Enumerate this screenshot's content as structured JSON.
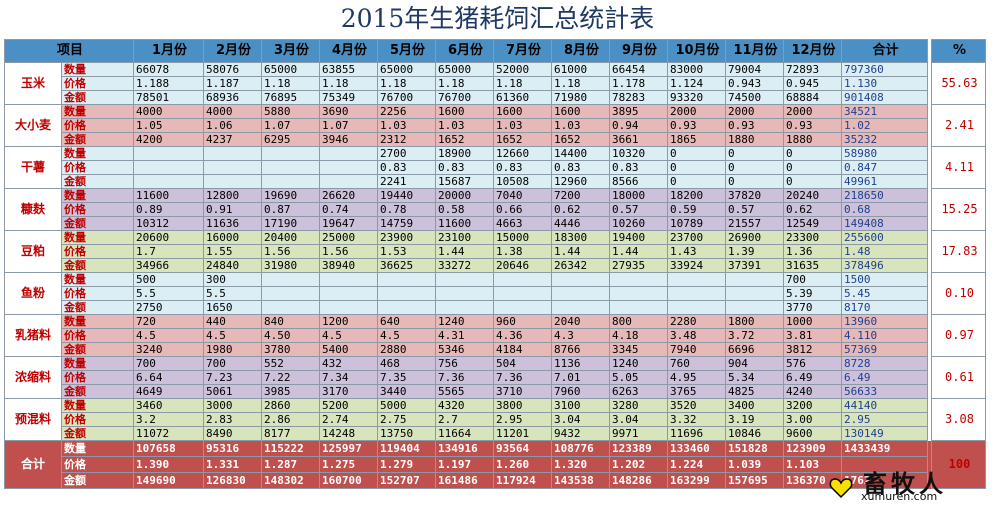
{
  "title": "2015年生猪耗饲汇总统計表",
  "headers": [
    "项目",
    "1月份",
    "2月份",
    "3月份",
    "4月份",
    "5月份",
    "6月份",
    "7月份",
    "8月份",
    "9月份",
    "10月份",
    "11月份",
    "12月份",
    "合计",
    "%"
  ],
  "groups": [
    {
      "name": "玉米",
      "bg": "#dbeef4",
      "pct": "55.63",
      "rows": [
        {
          "label": "数量",
          "values": [
            "66078",
            "58076",
            "65000",
            "63855",
            "65000",
            "65000",
            "52000",
            "61000",
            "66454",
            "83000",
            "79004",
            "72893"
          ],
          "total": "797360"
        },
        {
          "label": "价格",
          "values": [
            "1.188",
            "1.187",
            "1.18",
            "1.18",
            "1.18",
            "1.18",
            "1.18",
            "1.18",
            "1.178",
            "1.124",
            "0.943",
            "0.945"
          ],
          "total": "1.130"
        },
        {
          "label": "金额",
          "values": [
            "78501",
            "68936",
            "76895",
            "75349",
            "76700",
            "76700",
            "61360",
            "71980",
            "78283",
            "93320",
            "74500",
            "68884"
          ],
          "total": "901408"
        }
      ]
    },
    {
      "name": "大小麦",
      "bg": "#e6b8b7",
      "pct": "2.41",
      "rows": [
        {
          "label": "数量",
          "values": [
            "4000",
            "4000",
            "5880",
            "3690",
            "2256",
            "1600",
            "1600",
            "1600",
            "3895",
            "2000",
            "2000",
            "2000"
          ],
          "total": "34521"
        },
        {
          "label": "价格",
          "values": [
            "1.05",
            "1.06",
            "1.07",
            "1.07",
            "1.03",
            "1.03",
            "1.03",
            "1.03",
            "0.94",
            "0.93",
            "0.93",
            "0.93"
          ],
          "total": "1.02"
        },
        {
          "label": "金额",
          "values": [
            "4200",
            "4237",
            "6295",
            "3946",
            "2312",
            "1652",
            "1652",
            "1652",
            "3661",
            "1865",
            "1880",
            "1880"
          ],
          "total": "35232"
        }
      ]
    },
    {
      "name": "干薯",
      "bg": "#dbeef4",
      "pct": "4.11",
      "rows": [
        {
          "label": "数量",
          "values": [
            "",
            "",
            "",
            "",
            "2700",
            "18900",
            "12660",
            "14400",
            "10320",
            "0",
            "0",
            "0"
          ],
          "total": "58980"
        },
        {
          "label": "价格",
          "values": [
            "",
            "",
            "",
            "",
            "0.83",
            "0.83",
            "0.83",
            "0.83",
            "0.83",
            "0",
            "0",
            "0"
          ],
          "total": "0.847"
        },
        {
          "label": "金额",
          "values": [
            "",
            "",
            "",
            "",
            "2241",
            "15687",
            "10508",
            "12960",
            "8566",
            "0",
            "0",
            "0"
          ],
          "total": "49961"
        }
      ]
    },
    {
      "name": "糠麸",
      "bg": "#ccc0da",
      "pct": "15.25",
      "rows": [
        {
          "label": "数量",
          "values": [
            "11600",
            "12800",
            "19690",
            "26620",
            "19440",
            "20000",
            "7040",
            "7200",
            "18000",
            "18200",
            "37820",
            "20240"
          ],
          "total": "218650"
        },
        {
          "label": "价格",
          "values": [
            "0.89",
            "0.91",
            "0.87",
            "0.74",
            "0.78",
            "0.58",
            "0.66",
            "0.62",
            "0.57",
            "0.59",
            "0.57",
            "0.62"
          ],
          "total": "0.68"
        },
        {
          "label": "金额",
          "values": [
            "10312",
            "11636",
            "17190",
            "19647",
            "14759",
            "11600",
            "4663",
            "4446",
            "10260",
            "10789",
            "21557",
            "12549"
          ],
          "total": "149408"
        }
      ]
    },
    {
      "name": "豆粕",
      "bg": "#d8e4bc",
      "pct": "17.83",
      "rows": [
        {
          "label": "数量",
          "values": [
            "20600",
            "16000",
            "20400",
            "25000",
            "23900",
            "23100",
            "15000",
            "18300",
            "19400",
            "23700",
            "26900",
            "23300"
          ],
          "total": "255600"
        },
        {
          "label": "价格",
          "values": [
            "1.7",
            "1.55",
            "1.56",
            "1.56",
            "1.53",
            "1.44",
            "1.38",
            "1.44",
            "1.44",
            "1.43",
            "1.39",
            "1.36"
          ],
          "total": "1.48"
        },
        {
          "label": "金额",
          "values": [
            "34966",
            "24840",
            "31980",
            "38940",
            "36625",
            "33272",
            "20646",
            "26342",
            "27935",
            "33924",
            "37391",
            "31635"
          ],
          "total": "378496"
        }
      ]
    },
    {
      "name": "鱼粉",
      "bg": "#dbeef4",
      "pct": "0.10",
      "rows": [
        {
          "label": "数量",
          "values": [
            "500",
            "300",
            "",
            "",
            "",
            "",
            "",
            "",
            "",
            "",
            "",
            "700"
          ],
          "total": "1500"
        },
        {
          "label": "价格",
          "values": [
            "5.5",
            "5.5",
            "",
            "",
            "",
            "",
            "",
            "",
            "",
            "",
            "",
            "5.39"
          ],
          "total": "5.45"
        },
        {
          "label": "金额",
          "values": [
            "2750",
            "1650",
            "",
            "",
            "",
            "",
            "",
            "",
            "",
            "",
            "",
            "3770"
          ],
          "total": "8170"
        }
      ]
    },
    {
      "name": "乳猪料",
      "bg": "#e6b8b7",
      "pct": "0.97",
      "rows": [
        {
          "label": "数量",
          "values": [
            "720",
            "440",
            "840",
            "1200",
            "640",
            "1240",
            "960",
            "2040",
            "800",
            "2280",
            "1800",
            "1000"
          ],
          "total": "13960"
        },
        {
          "label": "价格",
          "values": [
            "4.5",
            "4.5",
            "4.50",
            "4.5",
            "4.5",
            "4.31",
            "4.36",
            "4.3",
            "4.18",
            "3.48",
            "3.72",
            "3.81"
          ],
          "total": "4.110"
        },
        {
          "label": "金额",
          "values": [
            "3240",
            "1980",
            "3780",
            "5400",
            "2880",
            "5346",
            "4184",
            "8766",
            "3345",
            "7940",
            "6696",
            "3812"
          ],
          "total": "57369"
        }
      ]
    },
    {
      "name": "浓缩料",
      "bg": "#ccc0da",
      "pct": "0.61",
      "rows": [
        {
          "label": "数量",
          "values": [
            "700",
            "700",
            "552",
            "432",
            "468",
            "756",
            "504",
            "1136",
            "1240",
            "760",
            "904",
            "576"
          ],
          "total": "8728"
        },
        {
          "label": "价格",
          "values": [
            "6.64",
            "7.23",
            "7.22",
            "7.34",
            "7.35",
            "7.36",
            "7.36",
            "7.01",
            "5.05",
            "4.95",
            "5.34",
            "6.49"
          ],
          "total": "6.49"
        },
        {
          "label": "金额",
          "values": [
            "4649",
            "5061",
            "3985",
            "3170",
            "3440",
            "5565",
            "3710",
            "7960",
            "6263",
            "3765",
            "4825",
            "4240"
          ],
          "total": "56633"
        }
      ]
    },
    {
      "name": "预混料",
      "bg": "#d8e4bc",
      "pct": "3.08",
      "rows": [
        {
          "label": "数量",
          "values": [
            "3460",
            "3000",
            "2860",
            "5200",
            "5000",
            "4320",
            "3800",
            "3100",
            "3280",
            "3520",
            "3400",
            "3200"
          ],
          "total": "44140"
        },
        {
          "label": "价格",
          "values": [
            "3.2",
            "2.83",
            "2.86",
            "2.74",
            "2.75",
            "2.7",
            "2.95",
            "3.04",
            "3.04",
            "3.32",
            "3.19",
            "3.00"
          ],
          "total": "2.95"
        },
        {
          "label": "金额",
          "values": [
            "11072",
            "8490",
            "8177",
            "14248",
            "13750",
            "11664",
            "11201",
            "9432",
            "9971",
            "11696",
            "10846",
            "9600"
          ],
          "total": "130149"
        }
      ]
    }
  ],
  "summary": {
    "name": "合计",
    "pct": "100",
    "rows": [
      {
        "label": "数量",
        "values": [
          "107658",
          "95316",
          "115222",
          "125997",
          "119404",
          "134916",
          "93564",
          "108776",
          "123389",
          "133460",
          "151828",
          "123909"
        ],
        "total": "1433439"
      },
      {
        "label": "价格",
        "values": [
          "1.390",
          "1.331",
          "1.287",
          "1.275",
          "1.279",
          "1.197",
          "1.260",
          "1.320",
          "1.202",
          "1.224",
          "1.039",
          "1.103"
        ],
        "total": ""
      },
      {
        "label": "金额",
        "values": [
          "149690",
          "126830",
          "148302",
          "160700",
          "152707",
          "161486",
          "117924",
          "143538",
          "148286",
          "163299",
          "157695",
          "136370"
        ],
        "total": "1762…"
      }
    ]
  },
  "logo": {
    "name": "畜牧人",
    "url": "xumuren.com",
    "heart_color": "#f5e000"
  }
}
